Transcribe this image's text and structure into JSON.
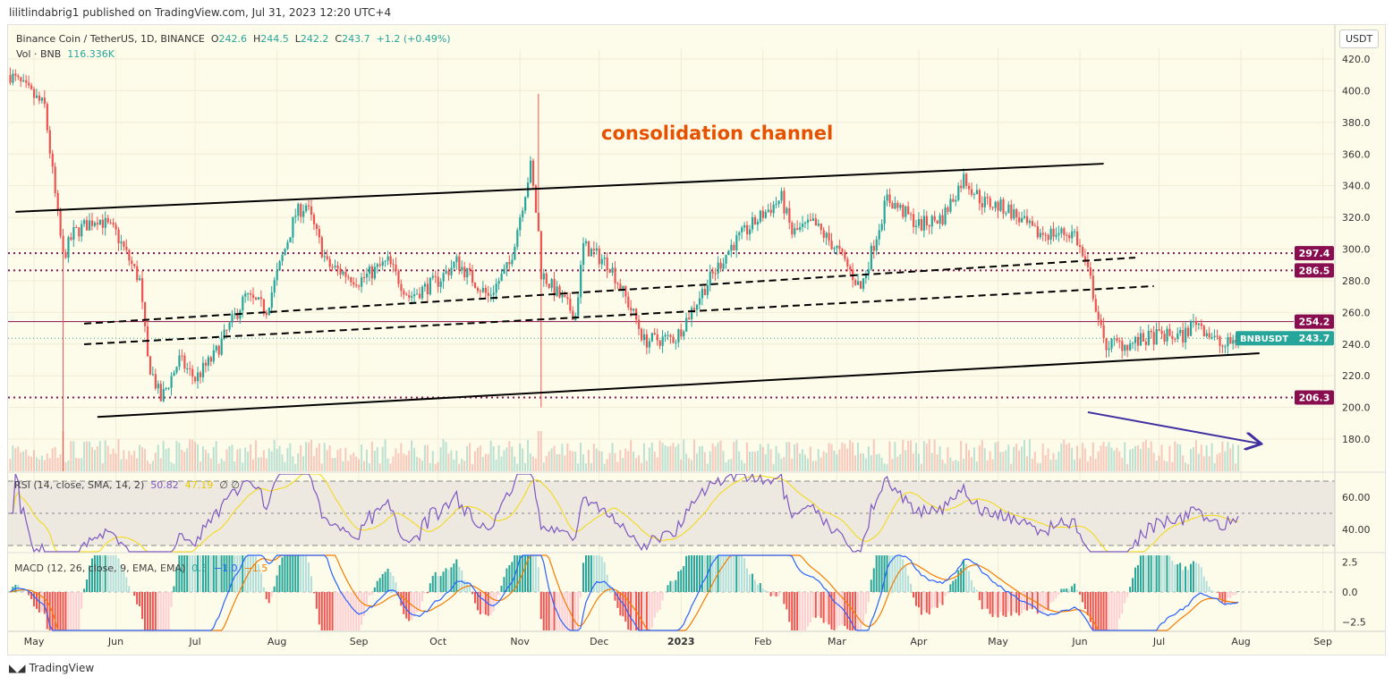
{
  "header": {
    "published": "lilitlindabrig1 published on TradingView.com, Jul 31, 2023 12:20 UTC+4"
  },
  "legend": {
    "symbol": "Binance Coin / TetherUS, 1D, BINANCE",
    "o_label": "O",
    "o": "242.6",
    "h_label": "H",
    "h": "244.5",
    "l_label": "L",
    "l": "242.2",
    "c_label": "C",
    "c": "243.7",
    "change": "+1.2 (+0.49%)",
    "vol_label": "Vol · BNB",
    "vol": "116.336K"
  },
  "currency_button": "USDT",
  "annotation": "consolidation channel",
  "rsi": {
    "label": "RSI (14, close, SMA, 14, 2)",
    "value": "50.82",
    "sma": "47.19",
    "extra": "∅  ∅",
    "ticks": [
      "60.00",
      "40.00"
    ]
  },
  "macd": {
    "label": "MACD (12, 26, close, 9, EMA, EMA)",
    "hist": "0.5",
    "macd": "−1.0",
    "signal": "−1.5",
    "ticks": [
      "2.5",
      "0.0",
      "−2.5"
    ]
  },
  "footer": {
    "logo": "TradingView"
  },
  "colors": {
    "up": "#26a69a",
    "down": "#ef5350",
    "level": "#880e4f",
    "annotation": "#e65100",
    "arrow": "#3f2fa0",
    "rsi": "#7e57c2",
    "rsi_sma": "#f5d90a",
    "macd": "#2962ff",
    "signal": "#f57c00"
  },
  "chart_data": {
    "type": "candlestick",
    "symbol": "BNBUSDT",
    "interval": "1D",
    "price_axis_ticks": [
      "420.0",
      "400.0",
      "380.0",
      "360.0",
      "340.0",
      "320.0",
      "300.0",
      "280.0",
      "260.0",
      "240.0",
      "220.0",
      "200.0",
      "180.0"
    ],
    "ylim": [
      165,
      425
    ],
    "time_axis_ticks": [
      {
        "label": "May",
        "date": "2022-05-01"
      },
      {
        "label": "Jun",
        "date": "2022-06-01"
      },
      {
        "label": "Jul",
        "date": "2022-07-01"
      },
      {
        "label": "Aug",
        "date": "2022-08-01"
      },
      {
        "label": "Sep",
        "date": "2022-09-01"
      },
      {
        "label": "Oct",
        "date": "2022-10-01"
      },
      {
        "label": "Nov",
        "date": "2022-11-01"
      },
      {
        "label": "Dec",
        "date": "2022-12-01"
      },
      {
        "label": "2023",
        "date": "2023-01-01"
      },
      {
        "label": "Feb",
        "date": "2023-02-01"
      },
      {
        "label": "Mar",
        "date": "2023-03-01"
      },
      {
        "label": "Apr",
        "date": "2023-04-01"
      },
      {
        "label": "May",
        "date": "2023-05-01"
      },
      {
        "label": "Jun",
        "date": "2023-06-01"
      },
      {
        "label": "Jul",
        "date": "2023-07-01"
      },
      {
        "label": "Aug",
        "date": "2023-08-01"
      },
      {
        "label": "Sep",
        "date": "2023-09-01"
      }
    ],
    "close_path": [
      [
        "2022-04-22",
        410
      ],
      [
        "2022-05-05",
        390
      ],
      [
        "2022-05-10",
        320
      ],
      [
        "2022-05-12",
        295
      ],
      [
        "2022-05-16",
        310
      ],
      [
        "2022-05-25",
        320
      ],
      [
        "2022-06-01",
        310
      ],
      [
        "2022-06-10",
        280
      ],
      [
        "2022-06-13",
        230
      ],
      [
        "2022-06-18",
        205
      ],
      [
        "2022-06-25",
        230
      ],
      [
        "2022-07-01",
        218
      ],
      [
        "2022-07-08",
        232
      ],
      [
        "2022-07-20",
        270
      ],
      [
        "2022-07-28",
        262
      ],
      [
        "2022-08-08",
        322
      ],
      [
        "2022-08-12",
        328
      ],
      [
        "2022-08-20",
        290
      ],
      [
        "2022-09-01",
        280
      ],
      [
        "2022-09-12",
        292
      ],
      [
        "2022-09-20",
        270
      ],
      [
        "2022-10-01",
        280
      ],
      [
        "2022-10-08",
        292
      ],
      [
        "2022-10-20",
        270
      ],
      [
        "2022-10-28",
        290
      ],
      [
        "2022-11-05",
        352
      ],
      [
        "2022-11-08",
        310
      ],
      [
        "2022-11-09",
        285
      ],
      [
        "2022-11-15",
        272
      ],
      [
        "2022-11-22",
        258
      ],
      [
        "2022-11-25",
        302
      ],
      [
        "2022-12-05",
        290
      ],
      [
        "2022-12-15",
        255
      ],
      [
        "2022-12-18",
        242
      ],
      [
        "2022-12-30",
        244
      ],
      [
        "2023-01-10",
        276
      ],
      [
        "2023-01-20",
        302
      ],
      [
        "2023-02-01",
        322
      ],
      [
        "2023-02-08",
        332
      ],
      [
        "2023-02-12",
        310
      ],
      [
        "2023-02-20",
        316
      ],
      [
        "2023-03-01",
        300
      ],
      [
        "2023-03-10",
        275
      ],
      [
        "2023-03-20",
        332
      ],
      [
        "2023-03-25",
        325
      ],
      [
        "2023-04-01",
        315
      ],
      [
        "2023-04-10",
        320
      ],
      [
        "2023-04-18",
        345
      ],
      [
        "2023-04-25",
        330
      ],
      [
        "2023-05-05",
        325
      ],
      [
        "2023-05-15",
        310
      ],
      [
        "2023-05-30",
        310
      ],
      [
        "2023-06-05",
        280
      ],
      [
        "2023-06-10",
        240
      ],
      [
        "2023-06-20",
        240
      ],
      [
        "2023-06-30",
        245
      ],
      [
        "2023-07-10",
        245
      ],
      [
        "2023-07-15",
        255
      ],
      [
        "2023-07-25",
        238
      ],
      [
        "2023-07-31",
        243.7
      ]
    ],
    "spikes": [
      [
        "2022-05-12",
        100,
        "low"
      ],
      [
        "2022-11-08",
        398,
        "high"
      ],
      [
        "2022-11-09",
        200,
        "low"
      ]
    ],
    "horizontal_levels": [
      {
        "price": 297.4,
        "label": "297.4",
        "style": "dotted"
      },
      {
        "price": 286.5,
        "label": "286.5",
        "style": "dotted"
      },
      {
        "price": 254.2,
        "label": "254.2",
        "style": "solid"
      },
      {
        "price": 206.3,
        "label": "206.3",
        "style": "dotted"
      }
    ],
    "last_price": {
      "label": "BNBUSDT",
      "price": 243.7,
      "display": "243.7"
    },
    "trendlines": [
      {
        "name": "upper-channel",
        "style": "solid",
        "from": [
          "2022-04-24",
          323.5
        ],
        "to": [
          "2023-06-10",
          353.9
        ]
      },
      {
        "name": "lower-channel",
        "style": "solid",
        "from": [
          "2022-05-25",
          194
        ],
        "to": [
          "2023-08-08",
          234.2
        ]
      },
      {
        "name": "mid-dashed-1",
        "style": "dashed",
        "from": [
          "2022-05-20",
          252.9
        ],
        "to": [
          "2023-06-22",
          294.6
        ]
      },
      {
        "name": "mid-dashed-2",
        "style": "dashed",
        "from": [
          "2022-05-20",
          239.9
        ],
        "to": [
          "2023-06-29",
          276.6
        ]
      },
      {
        "name": "down-arrow",
        "style": "arrow",
        "from": [
          "2023-06-04",
          197
        ],
        "to": [
          "2023-08-08",
          177.2
        ]
      }
    ],
    "rsi_ylim": [
      25,
      75
    ],
    "rsi_bands": [
      70,
      50,
      30
    ],
    "macd_ylim": [
      -3,
      3
    ]
  }
}
